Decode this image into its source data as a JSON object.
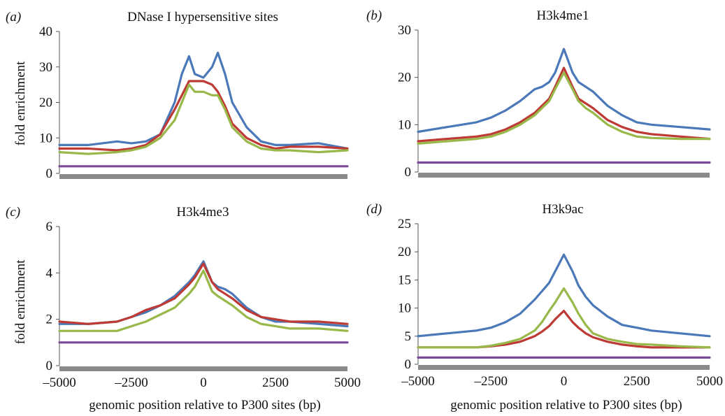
{
  "figure": {
    "ylabel": "fold enrichment",
    "xlabel": "genomic position relative to P300 sites (bp)"
  },
  "colors": {
    "blue": "#4a78b8",
    "red": "#be3a35",
    "green": "#98b94a",
    "purple": "#7a4a98",
    "baseline": "#8a8a8a"
  },
  "chart_data": [
    {
      "type": "line",
      "panel": "(a)",
      "title": "DNase I hypersensitive sites",
      "xlim": [
        -5000,
        5000
      ],
      "ylim": [
        0,
        40
      ],
      "yticks": [
        0,
        10,
        20,
        30,
        40
      ],
      "xticks": [],
      "x": [
        -5000,
        -4000,
        -3000,
        -2500,
        -2000,
        -1500,
        -1000,
        -750,
        -500,
        -300,
        0,
        300,
        500,
        750,
        1000,
        1500,
        2000,
        2500,
        3000,
        4000,
        5000
      ],
      "series": [
        {
          "color": "blue",
          "values": [
            8,
            8,
            9,
            8.5,
            9,
            11,
            20,
            28,
            33,
            28,
            27,
            30,
            34,
            28,
            20,
            13,
            9,
            8,
            8,
            8.5,
            7
          ]
        },
        {
          "color": "red",
          "values": [
            7,
            7,
            6.5,
            7,
            8,
            11,
            18,
            22,
            26,
            26,
            26,
            25,
            23,
            19,
            14,
            10,
            8,
            7,
            7.5,
            7.5,
            7
          ]
        },
        {
          "color": "green",
          "values": [
            6,
            5.5,
            6,
            6.5,
            7.5,
            10,
            15,
            20,
            25,
            23,
            23,
            22,
            22,
            18,
            13,
            9,
            7,
            6.5,
            6.5,
            6,
            6.5
          ]
        },
        {
          "color": "purple",
          "values": [
            2,
            2,
            2,
            2,
            2,
            2,
            2,
            2,
            2,
            2,
            2,
            2,
            2,
            2,
            2,
            2,
            2,
            2,
            2,
            2,
            2
          ]
        }
      ]
    },
    {
      "type": "line",
      "panel": "(b)",
      "title": "H3k4me1",
      "xlim": [
        -5000,
        5000
      ],
      "ylim": [
        0,
        30
      ],
      "yticks": [
        0,
        10,
        20,
        30
      ],
      "xticks": [],
      "x": [
        -5000,
        -4000,
        -3000,
        -2500,
        -2000,
        -1500,
        -1000,
        -750,
        -500,
        -300,
        0,
        300,
        500,
        750,
        1000,
        1500,
        2000,
        2500,
        3000,
        4000,
        5000
      ],
      "series": [
        {
          "color": "blue",
          "values": [
            8.5,
            9.5,
            10.5,
            11.5,
            13,
            15,
            17.5,
            18,
            19,
            21,
            26,
            21,
            19,
            18,
            17,
            14,
            12,
            10.5,
            10,
            9.5,
            9
          ]
        },
        {
          "color": "red",
          "values": [
            6.5,
            7,
            7.5,
            8,
            9,
            10.5,
            12.5,
            14,
            15.5,
            18,
            22,
            18,
            15.5,
            14.5,
            13.5,
            11,
            9.5,
            8.5,
            8,
            7.5,
            7
          ]
        },
        {
          "color": "green",
          "values": [
            6,
            6.5,
            7,
            7.5,
            8.5,
            10,
            12,
            13.5,
            15,
            17.5,
            21,
            17.5,
            15,
            13.5,
            12.5,
            10,
            8.5,
            7.5,
            7.2,
            7,
            7
          ]
        },
        {
          "color": "purple",
          "values": [
            2,
            2,
            2,
            2,
            2,
            2,
            2,
            2,
            2,
            2,
            2,
            2,
            2,
            2,
            2,
            2,
            2,
            2,
            2,
            2,
            2
          ]
        }
      ]
    },
    {
      "type": "line",
      "panel": "(c)",
      "title": "H3k4me3",
      "xlim": [
        -5000,
        5000
      ],
      "ylim": [
        0,
        6
      ],
      "yticks": [
        0,
        2,
        4,
        6
      ],
      "xticks": [
        -5000,
        -2500,
        0,
        2500,
        5000
      ],
      "xtick_labels": [
        "–5000",
        "–2500",
        "0",
        "2500",
        "5000"
      ],
      "x": [
        -5000,
        -4000,
        -3000,
        -2500,
        -2000,
        -1500,
        -1000,
        -750,
        -500,
        -300,
        0,
        300,
        500,
        750,
        1000,
        1500,
        2000,
        2500,
        3000,
        4000,
        5000
      ],
      "series": [
        {
          "color": "blue",
          "values": [
            1.8,
            1.8,
            1.9,
            2.1,
            2.3,
            2.6,
            3.0,
            3.3,
            3.6,
            3.9,
            4.5,
            3.6,
            3.4,
            3.3,
            3.1,
            2.5,
            2.1,
            1.9,
            1.9,
            1.8,
            1.7
          ]
        },
        {
          "color": "red",
          "values": [
            1.9,
            1.8,
            1.9,
            2.1,
            2.4,
            2.6,
            2.9,
            3.2,
            3.5,
            3.8,
            4.4,
            3.6,
            3.3,
            3.1,
            2.9,
            2.4,
            2.1,
            2.0,
            1.9,
            1.9,
            1.8
          ]
        },
        {
          "color": "green",
          "values": [
            1.5,
            1.5,
            1.5,
            1.7,
            1.9,
            2.2,
            2.5,
            2.8,
            3.1,
            3.4,
            4.1,
            3.2,
            3.0,
            2.8,
            2.6,
            2.1,
            1.8,
            1.7,
            1.6,
            1.6,
            1.5
          ]
        },
        {
          "color": "purple",
          "values": [
            1.0,
            1.0,
            1.0,
            1.0,
            1.0,
            1.0,
            1.0,
            1.0,
            1.0,
            1.0,
            1.0,
            1.0,
            1.0,
            1.0,
            1.0,
            1.0,
            1.0,
            1.0,
            1.0,
            1.0,
            1.0
          ]
        }
      ]
    },
    {
      "type": "line",
      "panel": "(d)",
      "title": "H3k9ac",
      "xlim": [
        -5000,
        5000
      ],
      "ylim": [
        0,
        25
      ],
      "yticks": [
        0,
        5,
        10,
        15,
        20,
        25
      ],
      "xticks": [
        -5000,
        -2500,
        0,
        2500,
        5000
      ],
      "xtick_labels": [
        "–5000",
        "–2500",
        "0",
        "2500",
        "5000"
      ],
      "x": [
        -5000,
        -4000,
        -3000,
        -2500,
        -2000,
        -1500,
        -1000,
        -750,
        -500,
        -300,
        0,
        300,
        500,
        750,
        1000,
        1500,
        2000,
        2500,
        3000,
        4000,
        5000
      ],
      "series": [
        {
          "color": "blue",
          "values": [
            5,
            5.5,
            6,
            6.5,
            7.5,
            9,
            11.5,
            13,
            14.5,
            16.5,
            19.5,
            16.5,
            14,
            12,
            10.5,
            8.5,
            7,
            6.5,
            6,
            5.5,
            5
          ]
        },
        {
          "color": "red",
          "values": [
            3,
            3,
            3,
            3.2,
            3.5,
            4,
            5,
            5.8,
            6.8,
            8,
            9.5,
            7.5,
            6.5,
            5.5,
            4.8,
            4,
            3.5,
            3.2,
            3,
            3,
            3
          ]
        },
        {
          "color": "green",
          "values": [
            3,
            3,
            3,
            3.3,
            3.8,
            4.5,
            6,
            7.5,
            9.5,
            11,
            13.5,
            11,
            9,
            7,
            5.5,
            4.5,
            4,
            3.6,
            3.5,
            3.2,
            3
          ]
        },
        {
          "color": "purple",
          "values": [
            1.2,
            1.2,
            1.2,
            1.2,
            1.2,
            1.2,
            1.2,
            1.2,
            1.2,
            1.2,
            1.2,
            1.2,
            1.2,
            1.2,
            1.2,
            1.2,
            1.2,
            1.2,
            1.2,
            1.2,
            1.2
          ]
        }
      ]
    }
  ]
}
